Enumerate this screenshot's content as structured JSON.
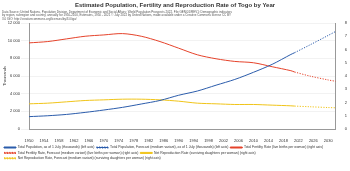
{
  "chart_data": {
    "type": "line",
    "title": "Estimated Population, Fertility and Reproduction Rate of Togo by Year",
    "subtitle": [
      "Data Source: United Nations, Population Division, Department of Economic and Social Affairs: World Population Prospects 2022, File GEN/01/REV1: Demographic indicators",
      "by region, subregion and country, annually for 1950-2100, Estimates, 1950 - 2021 © July 2022 by United Nations, made available under a Creative Commons license CC BY",
      "3.0 IGO: http://creativecommons.org/licenses/by/3.0/igo/"
    ],
    "y_label": "Thousands",
    "x": [
      1950,
      1955,
      1960,
      1965,
      1970,
      1975,
      1980,
      1985,
      1990,
      1995,
      2000,
      2005,
      2010,
      2015,
      2020,
      2021,
      2025,
      2030,
      2032
    ],
    "series": [
      {
        "name": "Total Population, as of 1 July (thousands) (left axis)",
        "color": "#2b5cab",
        "line_style": "solid",
        "values": [
          1400,
          1500,
          1650,
          1880,
          2150,
          2450,
          2830,
          3230,
          3820,
          4300,
          4960,
          5610,
          6420,
          7320,
          8440,
          8640,
          null,
          null,
          null
        ]
      },
      {
        "name": "Total Population, Forecast (medium variant), as of 1 July (thousands) (left axis)",
        "color": "#2b5cab",
        "line_style": "dotted",
        "values": [
          null,
          null,
          null,
          null,
          null,
          null,
          null,
          null,
          null,
          null,
          null,
          null,
          null,
          null,
          null,
          8640,
          9500,
          10600,
          11050
        ]
      },
      {
        "name": "Total Fertility Rate (live births per woman) (right axis)",
        "color": "#e5432b",
        "line_style": "solid",
        "axis": "y2",
        "values": [
          6.5,
          6.6,
          6.8,
          7.0,
          7.1,
          7.2,
          7.0,
          6.6,
          6.1,
          5.6,
          5.3,
          5.1,
          5.0,
          4.7,
          4.4,
          4.3,
          null,
          null,
          null
        ]
      },
      {
        "name": "Total Fertility Rate, Forecast (medium variant) (live births per woman) (right axis)",
        "color": "#e5432b",
        "line_style": "dotted",
        "axis": "y2",
        "values": [
          null,
          null,
          null,
          null,
          null,
          null,
          null,
          null,
          null,
          null,
          null,
          null,
          null,
          null,
          null,
          4.3,
          4.0,
          3.7,
          3.6
        ]
      },
      {
        "name": "Net Reproduction Rate (surviving daughters per woman) (right axis)",
        "color": "#f0c419",
        "line_style": "solid",
        "axis": "y2",
        "values": [
          1.9,
          1.95,
          2.05,
          2.15,
          2.2,
          2.25,
          2.25,
          2.2,
          2.1,
          1.95,
          1.9,
          1.85,
          1.85,
          1.8,
          1.75,
          1.73,
          null,
          null,
          null
        ]
      },
      {
        "name": "Net Reproduction Rate, Forecast (medium variant) (surviving daughters per woman) (right axis)",
        "color": "#f0c419",
        "line_style": "dotted",
        "axis": "y2",
        "values": [
          null,
          null,
          null,
          null,
          null,
          null,
          null,
          null,
          null,
          null,
          null,
          null,
          null,
          null,
          null,
          1.73,
          1.68,
          1.62,
          1.6
        ]
      }
    ],
    "xlim": [
      1950,
      2032
    ],
    "xticks": [
      1950,
      1954,
      1958,
      1962,
      1966,
      1970,
      1974,
      1978,
      1982,
      1986,
      1990,
      1994,
      1998,
      2002,
      2006,
      2010,
      2014,
      2018,
      2022,
      2026,
      2030
    ],
    "ylim": [
      0,
      12000
    ],
    "yticks": [
      0,
      {
        "value": 2000,
        "label": "2 000"
      },
      {
        "value": 4000,
        "label": "4 000"
      },
      {
        "value": 6000,
        "label": "6 000"
      },
      {
        "value": 8000,
        "label": "8 000"
      },
      {
        "value": 10000,
        "label": "10 000"
      },
      {
        "value": 12000,
        "label": "12 000"
      }
    ],
    "y2lim": [
      0,
      8
    ],
    "y2ticks": [
      0,
      1,
      2,
      3,
      4,
      5,
      6,
      7,
      8
    ],
    "grid": true,
    "legend": "bottom"
  }
}
